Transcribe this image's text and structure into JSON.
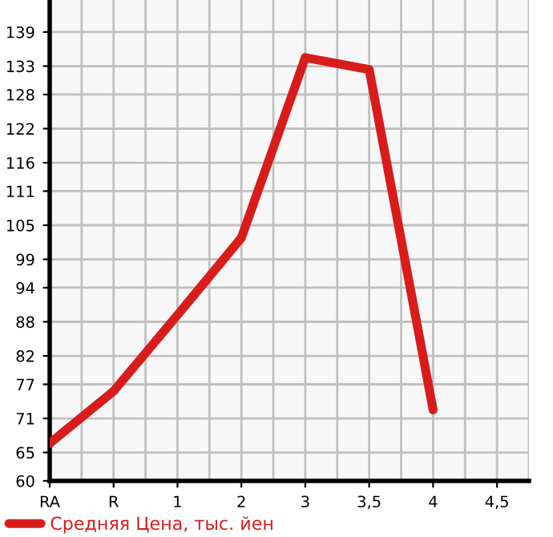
{
  "chart_data": {
    "type": "line",
    "categories": [
      "RA",
      "R",
      "1",
      "2",
      "3",
      "3,5",
      "4",
      "4,5"
    ],
    "series": [
      {
        "name": "Средняя Цена, тыс. йен",
        "color": "#d81c1c",
        "values": [
          66.6,
          75.8,
          89.2,
          102.8,
          134.5,
          132.4,
          72.5,
          null
        ]
      }
    ],
    "ylim": [
      60,
      144.64
    ],
    "yticks": [
      60,
      65,
      71,
      77,
      82,
      88,
      94,
      99,
      105,
      111,
      116,
      122,
      128,
      133,
      139
    ],
    "grid": true,
    "legend": "bottom",
    "marker": "none",
    "line_style": "solid"
  }
}
